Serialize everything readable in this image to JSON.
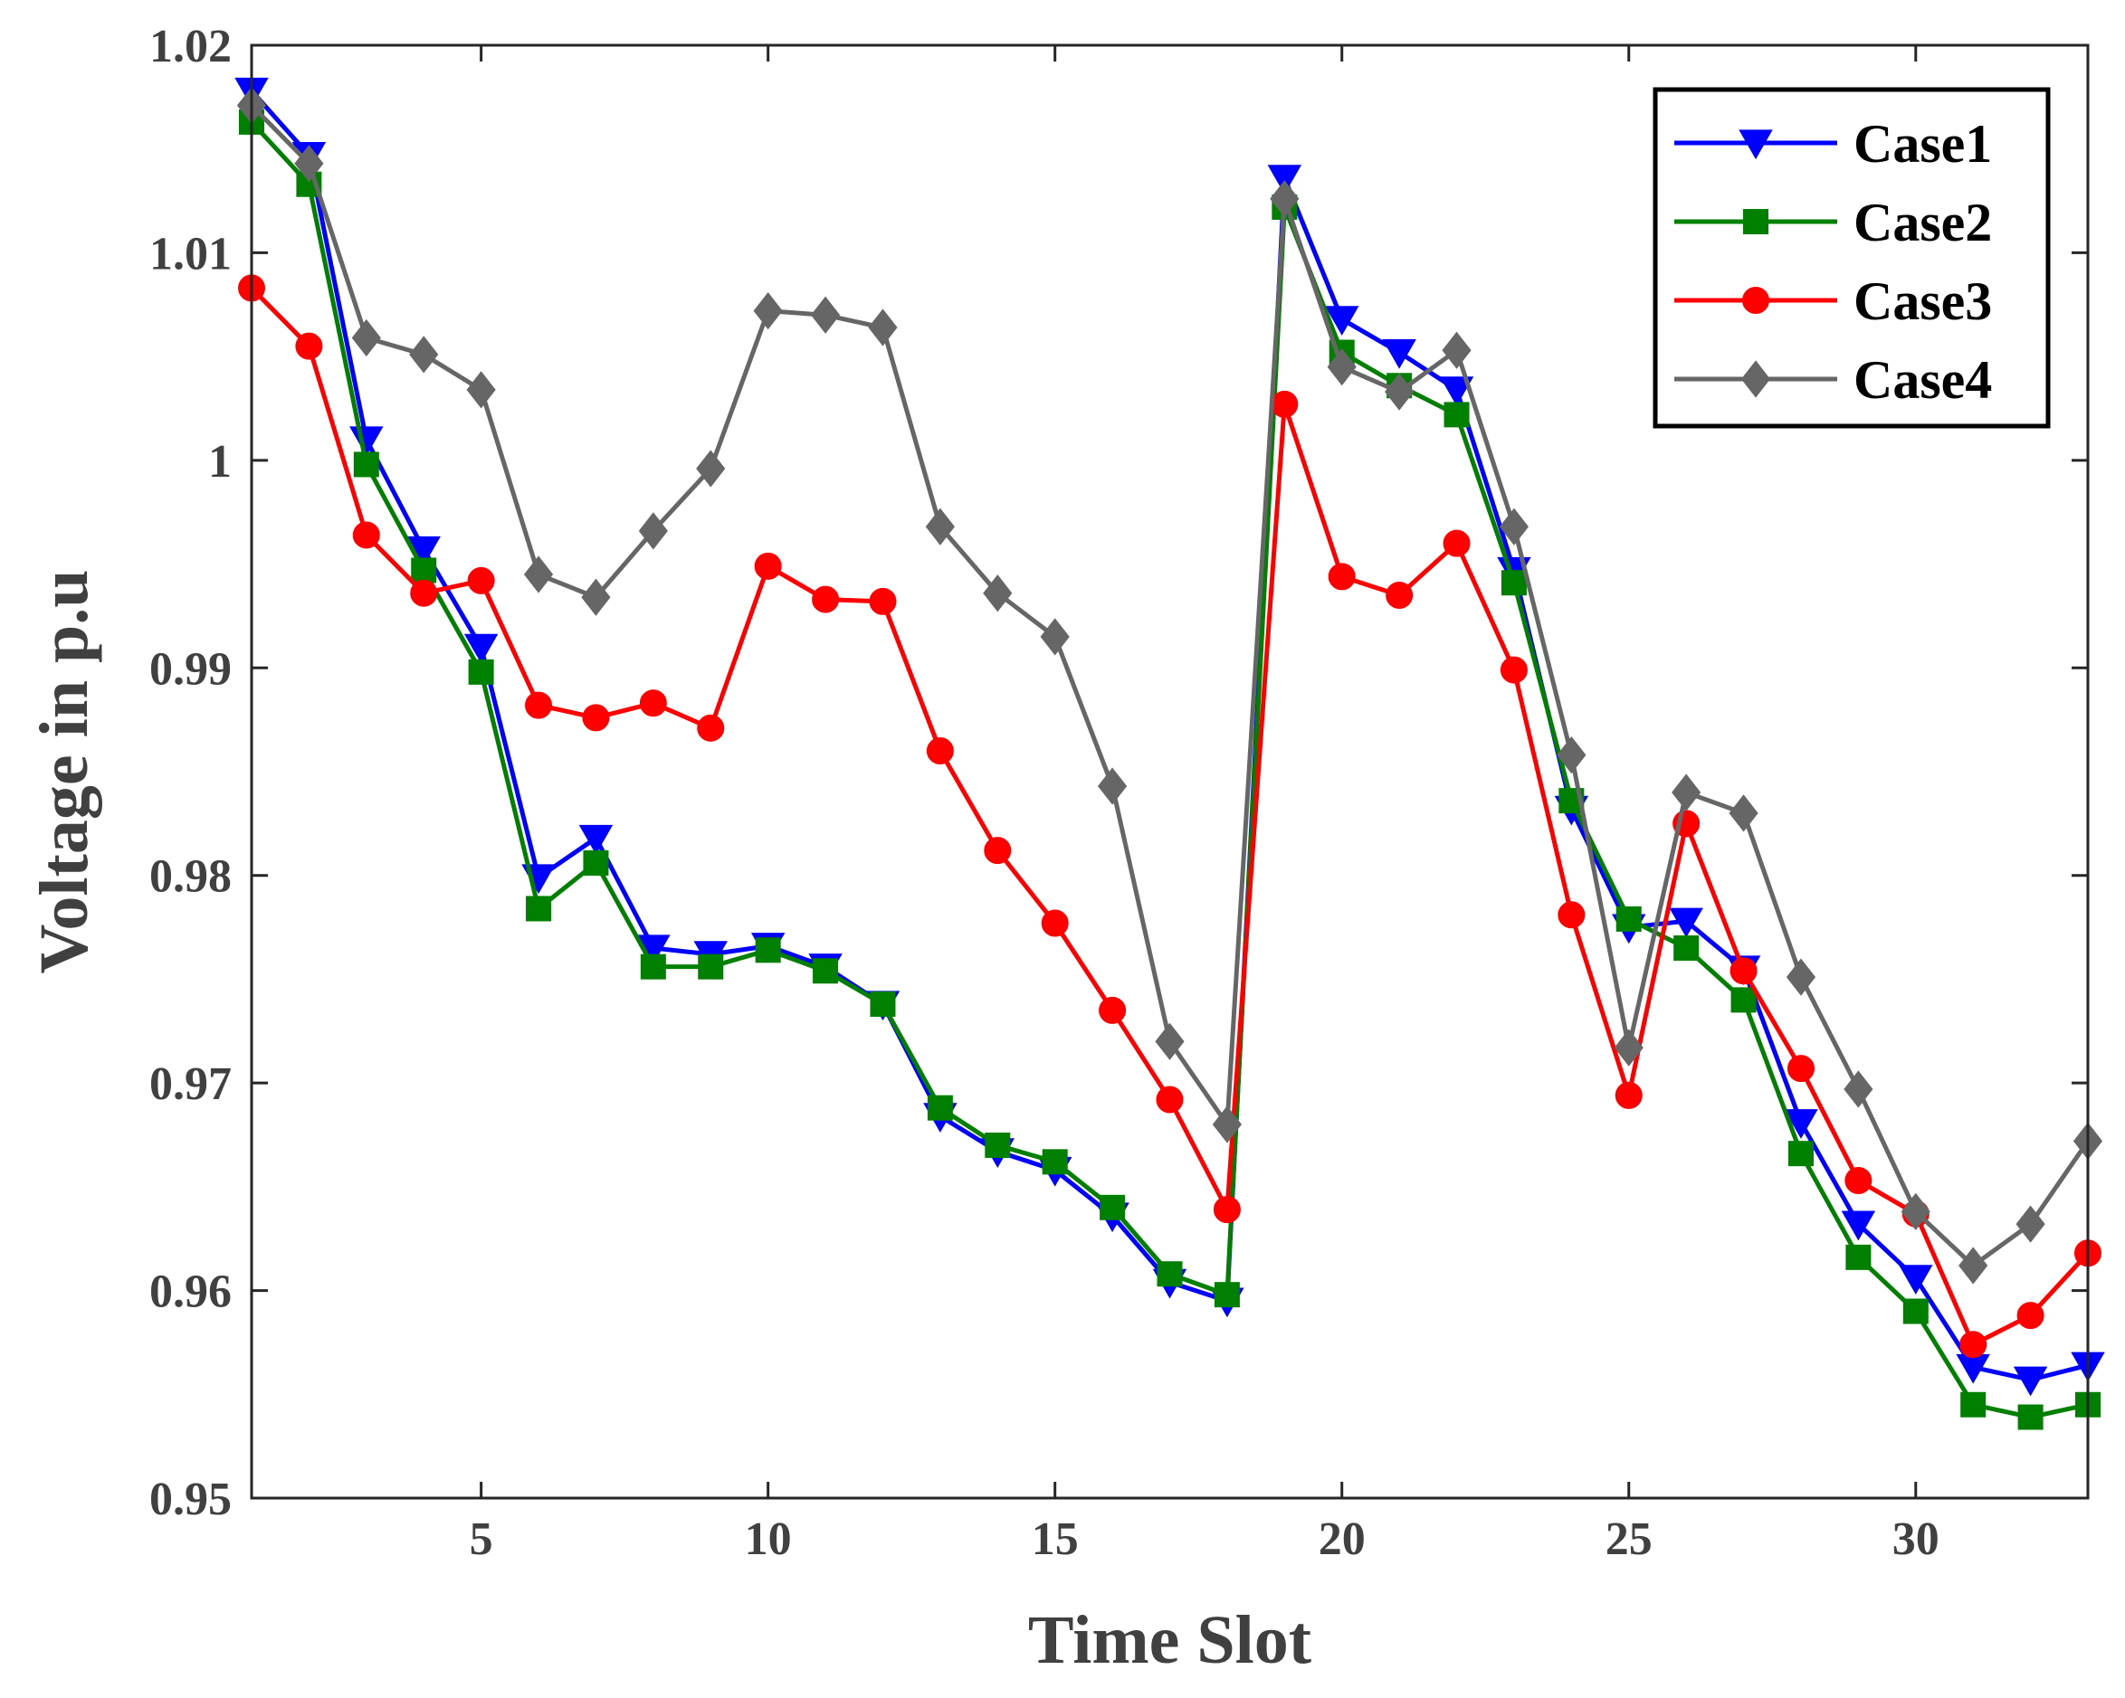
{
  "chart_data": {
    "type": "line",
    "title": "",
    "xlabel": "Time Slot",
    "ylabel": "Voltage in p.u",
    "xlim": [
      1,
      33
    ],
    "ylim": [
      0.95,
      1.02
    ],
    "xticks": [
      5,
      10,
      15,
      20,
      25,
      30
    ],
    "xtick_labels": [
      "5",
      "10",
      "15",
      "20",
      "25",
      "30"
    ],
    "yticks": [
      0.95,
      0.96,
      0.97,
      0.98,
      0.99,
      1.0,
      1.01,
      1.02
    ],
    "ytick_labels": [
      "0.95",
      "0.96",
      "0.97",
      "0.98",
      "0.99",
      "1",
      "1.01",
      "1.02"
    ],
    "grid": false,
    "legend_position": "top-right",
    "x": [
      1,
      2,
      3,
      4,
      5,
      6,
      7,
      8,
      9,
      10,
      11,
      12,
      13,
      14,
      15,
      16,
      17,
      18,
      19,
      20,
      21,
      22,
      23,
      24,
      25,
      26,
      27,
      28,
      29,
      30,
      31,
      32,
      33
    ],
    "series": [
      {
        "name": "Case1",
        "color": "#0000ff",
        "marker": "triangle-down",
        "values": [
          1.0178,
          1.0147,
          1.001,
          0.9957,
          0.991,
          0.9799,
          0.9818,
          0.9765,
          0.9762,
          0.9766,
          0.9756,
          0.9738,
          0.9684,
          0.9667,
          0.9658,
          0.9636,
          0.9604,
          0.9595,
          1.0136,
          1.0068,
          1.0052,
          1.0034,
          0.9947,
          0.9832,
          0.9775,
          0.9778,
          0.9755,
          0.9681,
          0.9632,
          0.9606,
          0.9563,
          0.9557,
          0.9564
        ]
      },
      {
        "name": "Case2",
        "color": "#007f00",
        "marker": "square",
        "values": [
          1.0163,
          1.0133,
          0.9998,
          0.9947,
          0.9898,
          0.9784,
          0.9806,
          0.9756,
          0.9756,
          0.9764,
          0.9754,
          0.9738,
          0.9688,
          0.967,
          0.9662,
          0.964,
          0.9608,
          0.9598,
          1.0122,
          1.0052,
          1.0036,
          1.0022,
          0.9941,
          0.9836,
          0.9779,
          0.9765,
          0.974,
          0.9666,
          0.9616,
          0.959,
          0.9545,
          0.9539,
          0.9545
        ]
      },
      {
        "name": "Case3",
        "color": "#ff0000",
        "marker": "circle",
        "values": [
          1.0083,
          1.0055,
          0.9964,
          0.9936,
          0.9942,
          0.9882,
          0.9876,
          0.9883,
          0.9871,
          0.9949,
          0.9933,
          0.9932,
          0.986,
          0.9812,
          0.9777,
          0.9735,
          0.9692,
          0.9639,
          1.0027,
          0.9944,
          0.9935,
          0.996,
          0.9899,
          0.9781,
          0.9694,
          0.9825,
          0.9754,
          0.9707,
          0.9653,
          0.9637,
          0.9574,
          0.9588,
          0.9618
        ]
      },
      {
        "name": "Case4",
        "color": "#666666",
        "marker": "diamond",
        "values": [
          1.0171,
          1.0143,
          1.0059,
          1.0051,
          1.0034,
          0.9945,
          0.9934,
          0.9966,
          0.9996,
          1.0072,
          1.007,
          1.0064,
          0.9968,
          0.9936,
          0.9915,
          0.9843,
          0.972,
          0.968,
          1.0126,
          1.0045,
          1.0033,
          1.0053,
          0.9968,
          0.9858,
          0.9717,
          0.984,
          0.983,
          0.9751,
          0.9697,
          0.9638,
          0.9612,
          0.9632,
          0.9672
        ]
      }
    ]
  }
}
